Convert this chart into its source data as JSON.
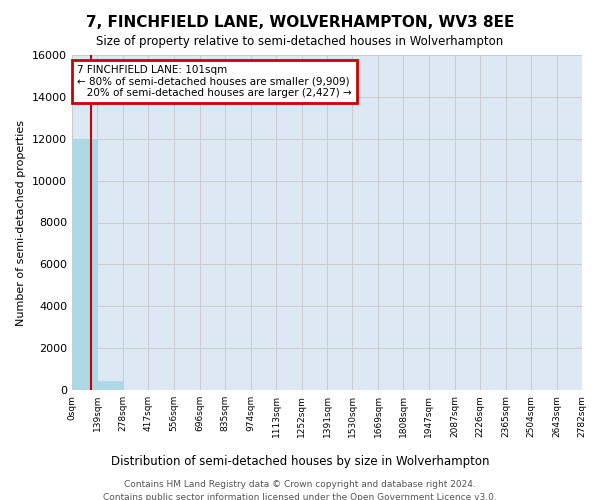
{
  "title": "7, FINCHFIELD LANE, WOLVERHAMPTON, WV3 8EE",
  "subtitle": "Size of property relative to semi-detached houses in Wolverhampton",
  "xlabel_dist": "Distribution of semi-detached houses by size in Wolverhampton",
  "ylabel": "Number of semi-detached properties",
  "footer_line1": "Contains HM Land Registry data © Crown copyright and database right 2024.",
  "footer_line2": "Contains public sector information licensed under the Open Government Licence v3.0.",
  "property_size": 101,
  "property_label": "7 FINCHFIELD LANE: 101sqm",
  "pct_smaller": 80,
  "n_smaller": 9909,
  "pct_larger": 20,
  "n_larger": 2427,
  "bin_width": 139,
  "bin_edges": [
    0,
    139,
    278,
    417,
    556,
    696,
    835,
    974,
    1113,
    1252,
    1391,
    1530,
    1669,
    1808,
    1947,
    2087,
    2226,
    2365,
    2504,
    2643,
    2782
  ],
  "bar_heights": [
    12000,
    450,
    0,
    0,
    0,
    0,
    0,
    0,
    0,
    0,
    0,
    0,
    0,
    0,
    0,
    0,
    0,
    0,
    0,
    0
  ],
  "bar_color": "#add8e6",
  "bar_edgecolor": "#add8e6",
  "grid_color": "#cccccc",
  "bg_color": "#dce9f5",
  "vline_color": "#cc0000",
  "vline_x": 101,
  "ylim": [
    0,
    16000
  ],
  "yticks": [
    0,
    2000,
    4000,
    6000,
    8000,
    10000,
    12000,
    14000,
    16000
  ],
  "annotation_box_color": "#cc0000",
  "annotation_text_color": "#000000"
}
